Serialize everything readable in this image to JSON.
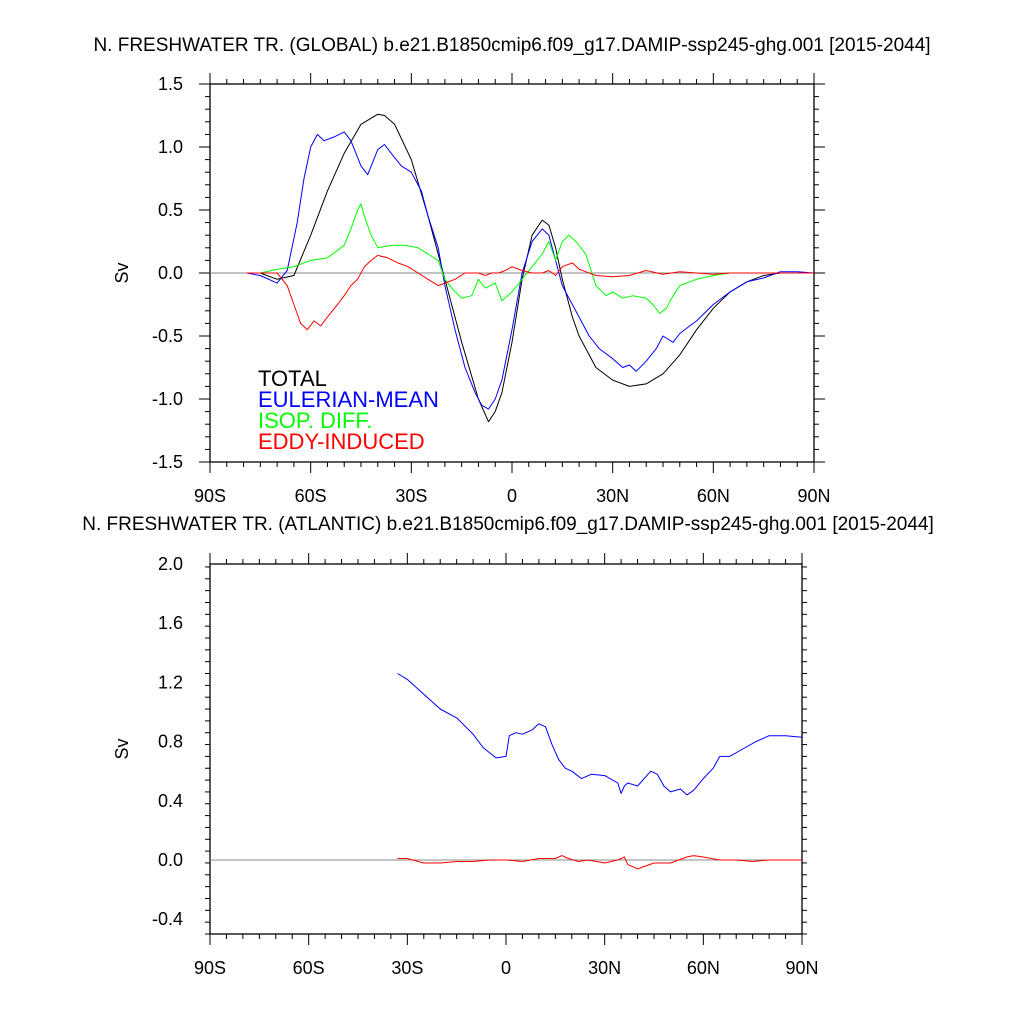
{
  "chart_data": [
    {
      "type": "line",
      "title": "N. FRESHWATER TR. (GLOBAL) b.e21.B1850cmip6.f09_g17.DAMIP-ssp245-ghg.001 [2015-2044]",
      "xlabel": "",
      "ylabel": "Sv",
      "xlim": [
        -90,
        90
      ],
      "ylim": [
        -1.5,
        1.5
      ],
      "x_ticks": [
        -90,
        -60,
        -30,
        0,
        30,
        60,
        90
      ],
      "x_tick_labels": [
        "90S",
        "60S",
        "30S",
        "0",
        "30N",
        "60N",
        "90N"
      ],
      "y_ticks": [
        1.5,
        1.0,
        0.5,
        0.0,
        -0.5,
        -1.0,
        -1.5
      ],
      "y_tick_labels": [
        "1.5",
        "1.0",
        "0.5",
        "0.0",
        "-0.5",
        "-1.0",
        "-1.5"
      ],
      "grid": false,
      "legend_placement": "bottom-left",
      "zero_line": true,
      "series": [
        {
          "name": "TOTAL",
          "color": "#000000",
          "x": [
            -79,
            -75,
            -70,
            -65,
            -60,
            -55,
            -50,
            -45,
            -40,
            -38,
            -35,
            -30,
            -25,
            -20,
            -15,
            -10,
            -7,
            -5,
            -3,
            0,
            3,
            6,
            9,
            11,
            13,
            15,
            18,
            20,
            25,
            30,
            35,
            40,
            45,
            50,
            55,
            60,
            65,
            70,
            75,
            80,
            85,
            90
          ],
          "y": [
            0.0,
            0.0,
            -0.05,
            -0.02,
            0.3,
            0.65,
            0.95,
            1.18,
            1.26,
            1.25,
            1.18,
            0.9,
            0.45,
            -0.05,
            -0.55,
            -1.0,
            -1.18,
            -1.1,
            -0.95,
            -0.55,
            -0.05,
            0.3,
            0.42,
            0.38,
            0.2,
            -0.05,
            -0.35,
            -0.5,
            -0.75,
            -0.85,
            -0.9,
            -0.88,
            -0.8,
            -0.65,
            -0.45,
            -0.28,
            -0.15,
            -0.07,
            -0.02,
            0.0,
            0.0,
            0.0
          ]
        },
        {
          "name": "EULERIAN-MEAN",
          "color": "#0000ff",
          "x": [
            -79,
            -75,
            -70,
            -67,
            -64,
            -62,
            -60,
            -58,
            -56,
            -53,
            -50,
            -48,
            -45,
            -43,
            -40,
            -38,
            -36,
            -33,
            -30,
            -27,
            -25,
            -22,
            -20,
            -17,
            -14,
            -11,
            -9,
            -7,
            -5,
            -3,
            0,
            3,
            6,
            9,
            11,
            13,
            15,
            17,
            20,
            23,
            26,
            30,
            33,
            35,
            37,
            40,
            43,
            45,
            48,
            50,
            53,
            55,
            60,
            65,
            70,
            75,
            80,
            85,
            90
          ],
          "y": [
            0.0,
            -0.02,
            -0.08,
            0.02,
            0.4,
            0.75,
            1.0,
            1.1,
            1.05,
            1.08,
            1.12,
            1.05,
            0.85,
            0.78,
            0.98,
            1.02,
            0.95,
            0.85,
            0.8,
            0.65,
            0.45,
            0.2,
            -0.1,
            -0.45,
            -0.75,
            -0.95,
            -1.05,
            -1.08,
            -1.0,
            -0.85,
            -0.45,
            0.0,
            0.25,
            0.35,
            0.3,
            0.1,
            -0.1,
            -0.2,
            -0.35,
            -0.5,
            -0.6,
            -0.68,
            -0.75,
            -0.73,
            -0.78,
            -0.7,
            -0.6,
            -0.5,
            -0.55,
            -0.48,
            -0.42,
            -0.38,
            -0.25,
            -0.15,
            -0.07,
            -0.04,
            0.01,
            0.01,
            0.0
          ]
        },
        {
          "name": "ISOP. DIFF.",
          "color": "#00ff00",
          "x": [
            -79,
            -75,
            -70,
            -65,
            -60,
            -55,
            -50,
            -48,
            -46,
            -45,
            -44,
            -42,
            -40,
            -36,
            -32,
            -28,
            -25,
            -22,
            -20,
            -18,
            -15,
            -12,
            -10,
            -8,
            -5,
            -3,
            0,
            3,
            6,
            9,
            11,
            13,
            15,
            17,
            19,
            22,
            25,
            28,
            30,
            33,
            36,
            40,
            42,
            44,
            46,
            48,
            50,
            55,
            60,
            65,
            70,
            75,
            80,
            85,
            90
          ],
          "y": [
            0.0,
            0.0,
            0.03,
            0.05,
            0.1,
            0.12,
            0.22,
            0.35,
            0.5,
            0.55,
            0.45,
            0.3,
            0.2,
            0.22,
            0.22,
            0.2,
            0.15,
            0.1,
            -0.05,
            -0.12,
            -0.2,
            -0.18,
            -0.05,
            -0.12,
            -0.08,
            -0.22,
            -0.15,
            -0.05,
            0.05,
            0.15,
            0.25,
            0.1,
            0.25,
            0.3,
            0.25,
            0.15,
            -0.1,
            -0.18,
            -0.15,
            -0.2,
            -0.18,
            -0.2,
            -0.25,
            -0.32,
            -0.28,
            -0.18,
            -0.1,
            -0.05,
            -0.02,
            0.0,
            0.0,
            0.0,
            0.0,
            0.0,
            0.0
          ]
        },
        {
          "name": "EDDY-INDUCED",
          "color": "#ff0000",
          "x": [
            -79,
            -75,
            -70,
            -67,
            -65,
            -63,
            -61,
            -59,
            -57,
            -55,
            -52,
            -50,
            -48,
            -46,
            -44,
            -42,
            -40,
            -37,
            -34,
            -31,
            -28,
            -25,
            -22,
            -20,
            -17,
            -14,
            -10,
            -8,
            -6,
            -4,
            -2,
            0,
            3,
            6,
            9,
            11,
            13,
            15,
            18,
            20,
            25,
            30,
            35,
            40,
            45,
            50,
            55,
            60,
            65,
            70,
            75,
            80,
            85,
            90
          ],
          "y": [
            0.0,
            0.0,
            0.0,
            -0.1,
            -0.25,
            -0.4,
            -0.45,
            -0.38,
            -0.42,
            -0.35,
            -0.25,
            -0.18,
            -0.1,
            -0.05,
            0.05,
            0.1,
            0.14,
            0.12,
            0.08,
            0.05,
            0.0,
            -0.05,
            -0.1,
            -0.08,
            -0.05,
            0.0,
            0.0,
            -0.02,
            0.0,
            0.0,
            0.02,
            0.05,
            0.02,
            0.0,
            0.0,
            0.02,
            -0.02,
            0.05,
            0.08,
            0.03,
            -0.02,
            -0.03,
            -0.02,
            0.02,
            -0.01,
            0.01,
            0.0,
            -0.01,
            0.0,
            0.0,
            0.0,
            0.0,
            0.0,
            0.0
          ]
        }
      ],
      "legend": [
        {
          "label": "TOTAL",
          "color": "#000000"
        },
        {
          "label": "EULERIAN-MEAN",
          "color": "#0000ff"
        },
        {
          "label": "ISOP. DIFF.",
          "color": "#00ff00"
        },
        {
          "label": "EDDY-INDUCED",
          "color": "#ff0000"
        }
      ]
    },
    {
      "type": "line",
      "title": "N. FRESHWATER TR. (ATLANTIC) b.e21.B1850cmip6.f09_g17.DAMIP-ssp245-ghg.001 [2015-2044]",
      "xlabel": "",
      "ylabel": "Sv",
      "xlim": [
        -90,
        90
      ],
      "ylim": [
        -0.5,
        2.0
      ],
      "x_ticks": [
        -90,
        -60,
        -30,
        0,
        30,
        60,
        90
      ],
      "x_tick_labels": [
        "90S",
        "60S",
        "30S",
        "0",
        "30N",
        "60N",
        "90N"
      ],
      "y_ticks": [
        2.0,
        1.6,
        1.2,
        0.8,
        0.4,
        0.0,
        -0.4
      ],
      "y_tick_labels": [
        "2.0",
        "1.6",
        "1.2",
        "0.8",
        "0.4",
        "0.0",
        "-0.4"
      ],
      "grid": false,
      "zero_line": true,
      "series": [
        {
          "color": "#0000ff",
          "x": [
            -33,
            -30,
            -25,
            -20,
            -15,
            -10,
            -7,
            -3,
            0,
            1,
            3,
            5,
            8,
            10,
            12,
            14,
            16,
            18,
            20,
            23,
            26,
            30,
            34,
            35,
            36,
            37,
            40,
            44,
            46,
            48,
            50,
            53,
            55,
            57,
            60,
            63,
            65,
            68,
            72,
            76,
            80,
            85,
            90
          ],
          "y": [
            1.26,
            1.22,
            1.12,
            1.02,
            0.96,
            0.85,
            0.76,
            0.69,
            0.7,
            0.84,
            0.86,
            0.85,
            0.88,
            0.92,
            0.9,
            0.78,
            0.68,
            0.62,
            0.6,
            0.55,
            0.58,
            0.57,
            0.52,
            0.45,
            0.5,
            0.52,
            0.5,
            0.6,
            0.58,
            0.5,
            0.46,
            0.48,
            0.44,
            0.47,
            0.55,
            0.62,
            0.7,
            0.7,
            0.75,
            0.8,
            0.84,
            0.84,
            0.83
          ]
        },
        {
          "color": "#ff0000",
          "x": [
            -33,
            -30,
            -25,
            -20,
            -15,
            -10,
            -5,
            0,
            5,
            10,
            15,
            17,
            19,
            22,
            25,
            30,
            34,
            35,
            36,
            37,
            40,
            45,
            50,
            55,
            57,
            60,
            65,
            70,
            75,
            80,
            85,
            90
          ],
          "y": [
            0.01,
            0.01,
            -0.02,
            -0.02,
            -0.01,
            -0.01,
            0.0,
            0.0,
            -0.01,
            0.01,
            0.01,
            0.03,
            0.01,
            -0.01,
            0.0,
            -0.02,
            0.0,
            0.01,
            0.02,
            -0.03,
            -0.06,
            -0.02,
            -0.02,
            0.02,
            0.03,
            0.02,
            0.0,
            0.0,
            -0.01,
            0.0,
            0.0,
            0.0
          ]
        }
      ]
    }
  ]
}
